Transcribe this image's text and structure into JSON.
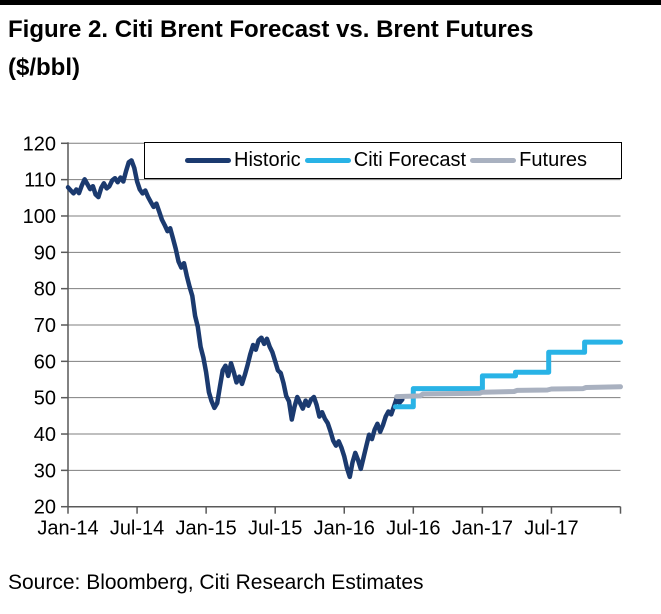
{
  "title": "Figure 2. Citi Brent Forecast vs. Brent Futures ($/bbl)",
  "source": "Source: Bloomberg, Citi Research Estimates",
  "colors": {
    "historic": "#1b3a6f",
    "forecast": "#29b3e6",
    "futures": "#a9b1c0",
    "grid": "#7f7f7f",
    "axis": "#595959",
    "text": "#000000"
  },
  "chart_data": {
    "type": "line",
    "title": "Figure 2. Citi Brent Forecast vs. Brent Futures ($/bbl)",
    "xlabel": "",
    "ylabel": "$/bbl",
    "grid": "horizontal",
    "legend_position": "top-inside",
    "x_axis": {
      "min": 2014.0,
      "max": 2018.0,
      "ticks": [
        {
          "x": 2014.0,
          "label": "Jan-14"
        },
        {
          "x": 2014.5,
          "label": "Jul-14"
        },
        {
          "x": 2015.0,
          "label": "Jan-15"
        },
        {
          "x": 2015.5,
          "label": "Jul-15"
        },
        {
          "x": 2016.0,
          "label": "Jan-16"
        },
        {
          "x": 2016.5,
          "label": "Jul-16"
        },
        {
          "x": 2017.0,
          "label": "Jan-17"
        },
        {
          "x": 2017.5,
          "label": "Jul-17"
        }
      ]
    },
    "y_axis": {
      "min": 20,
      "max": 120,
      "ticks": [
        20,
        30,
        40,
        50,
        60,
        70,
        80,
        90,
        100,
        110,
        120
      ]
    },
    "series": [
      {
        "name": "Historic",
        "color_key": "historic",
        "stroke_width": 4.5,
        "points": [
          [
            2014.0,
            107.9
          ],
          [
            2014.02,
            107.0
          ],
          [
            2014.04,
            106.2
          ],
          [
            2014.06,
            107.3
          ],
          [
            2014.08,
            106.3
          ],
          [
            2014.1,
            108.4
          ],
          [
            2014.12,
            110.1
          ],
          [
            2014.14,
            108.8
          ],
          [
            2014.16,
            107.4
          ],
          [
            2014.18,
            108.2
          ],
          [
            2014.2,
            105.9
          ],
          [
            2014.22,
            105.2
          ],
          [
            2014.24,
            107.7
          ],
          [
            2014.26,
            109.0
          ],
          [
            2014.28,
            107.6
          ],
          [
            2014.3,
            108.2
          ],
          [
            2014.32,
            109.8
          ],
          [
            2014.34,
            110.4
          ],
          [
            2014.36,
            109.3
          ],
          [
            2014.38,
            110.6
          ],
          [
            2014.4,
            109.5
          ],
          [
            2014.42,
            112.3
          ],
          [
            2014.44,
            114.8
          ],
          [
            2014.46,
            115.3
          ],
          [
            2014.48,
            113.2
          ],
          [
            2014.5,
            109.5
          ],
          [
            2014.52,
            107.3
          ],
          [
            2014.54,
            106.2
          ],
          [
            2014.56,
            107.0
          ],
          [
            2014.58,
            105.2
          ],
          [
            2014.6,
            103.8
          ],
          [
            2014.62,
            102.5
          ],
          [
            2014.64,
            103.4
          ],
          [
            2014.66,
            101.2
          ],
          [
            2014.68,
            99.0
          ],
          [
            2014.7,
            97.5
          ],
          [
            2014.72,
            95.8
          ],
          [
            2014.74,
            96.6
          ],
          [
            2014.76,
            93.8
          ],
          [
            2014.78,
            91.0
          ],
          [
            2014.8,
            87.5
          ],
          [
            2014.82,
            85.8
          ],
          [
            2014.84,
            87.0
          ],
          [
            2014.86,
            83.5
          ],
          [
            2014.88,
            80.5
          ],
          [
            2014.9,
            78.0
          ],
          [
            2014.92,
            72.5
          ],
          [
            2014.94,
            69.5
          ],
          [
            2014.96,
            64.0
          ],
          [
            2014.98,
            61.0
          ],
          [
            2015.0,
            57.0
          ],
          [
            2015.02,
            51.5
          ],
          [
            2015.04,
            49.0
          ],
          [
            2015.06,
            47.2
          ],
          [
            2015.08,
            48.5
          ],
          [
            2015.1,
            53.0
          ],
          [
            2015.12,
            57.5
          ],
          [
            2015.14,
            58.8
          ],
          [
            2015.16,
            56.0
          ],
          [
            2015.18,
            59.5
          ],
          [
            2015.2,
            57.0
          ],
          [
            2015.22,
            54.2
          ],
          [
            2015.24,
            55.8
          ],
          [
            2015.26,
            53.8
          ],
          [
            2015.28,
            56.2
          ],
          [
            2015.3,
            59.0
          ],
          [
            2015.32,
            62.0
          ],
          [
            2015.34,
            64.5
          ],
          [
            2015.36,
            63.2
          ],
          [
            2015.38,
            65.8
          ],
          [
            2015.4,
            66.5
          ],
          [
            2015.42,
            64.8
          ],
          [
            2015.44,
            66.2
          ],
          [
            2015.46,
            64.0
          ],
          [
            2015.48,
            62.5
          ],
          [
            2015.5,
            60.0
          ],
          [
            2015.52,
            57.5
          ],
          [
            2015.54,
            56.8
          ],
          [
            2015.56,
            54.0
          ],
          [
            2015.58,
            50.5
          ],
          [
            2015.6,
            49.0
          ],
          [
            2015.62,
            44.0
          ],
          [
            2015.64,
            47.5
          ],
          [
            2015.66,
            50.2
          ],
          [
            2015.68,
            48.5
          ],
          [
            2015.7,
            47.0
          ],
          [
            2015.72,
            49.2
          ],
          [
            2015.74,
            47.8
          ],
          [
            2015.76,
            49.5
          ],
          [
            2015.78,
            50.2
          ],
          [
            2015.8,
            48.0
          ],
          [
            2015.82,
            44.8
          ],
          [
            2015.84,
            46.0
          ],
          [
            2015.86,
            44.2
          ],
          [
            2015.88,
            43.0
          ],
          [
            2015.9,
            40.8
          ],
          [
            2015.92,
            38.2
          ],
          [
            2015.94,
            36.8
          ],
          [
            2015.96,
            38.0
          ],
          [
            2015.98,
            36.2
          ],
          [
            2016.0,
            33.8
          ],
          [
            2016.02,
            30.6
          ],
          [
            2016.04,
            28.2
          ],
          [
            2016.06,
            32.2
          ],
          [
            2016.08,
            34.8
          ],
          [
            2016.1,
            32.8
          ],
          [
            2016.12,
            30.4
          ],
          [
            2016.14,
            33.6
          ],
          [
            2016.16,
            36.8
          ],
          [
            2016.18,
            39.8
          ],
          [
            2016.2,
            38.6
          ],
          [
            2016.22,
            41.2
          ],
          [
            2016.24,
            42.8
          ],
          [
            2016.26,
            40.6
          ],
          [
            2016.28,
            42.4
          ],
          [
            2016.3,
            44.8
          ],
          [
            2016.32,
            46.2
          ],
          [
            2016.34,
            45.4
          ],
          [
            2016.36,
            47.6
          ],
          [
            2016.38,
            49.8
          ],
          [
            2016.4,
            48.6
          ],
          [
            2016.42,
            49.5
          ]
        ]
      },
      {
        "name": "Citi Forecast",
        "color_key": "forecast",
        "stroke_width": 5,
        "points": [
          [
            2016.37,
            47.5
          ],
          [
            2016.5,
            47.5
          ],
          [
            2016.5,
            52.5
          ],
          [
            2017.0,
            52.5
          ],
          [
            2017.0,
            56.0
          ],
          [
            2017.24,
            56.0
          ],
          [
            2017.24,
            57.0
          ],
          [
            2017.48,
            57.0
          ],
          [
            2017.48,
            62.5
          ],
          [
            2017.74,
            62.5
          ],
          [
            2017.74,
            65.3
          ],
          [
            2018.0,
            65.3
          ]
        ]
      },
      {
        "name": "Futures",
        "color_key": "futures",
        "stroke_width": 5,
        "points": [
          [
            2016.38,
            50.3
          ],
          [
            2016.55,
            50.5
          ],
          [
            2016.57,
            51.0
          ],
          [
            2016.98,
            51.2
          ],
          [
            2017.0,
            51.5
          ],
          [
            2017.23,
            51.7
          ],
          [
            2017.25,
            52.0
          ],
          [
            2017.47,
            52.1
          ],
          [
            2017.5,
            52.4
          ],
          [
            2017.73,
            52.5
          ],
          [
            2017.75,
            52.8
          ],
          [
            2018.0,
            53.0
          ]
        ]
      }
    ]
  }
}
